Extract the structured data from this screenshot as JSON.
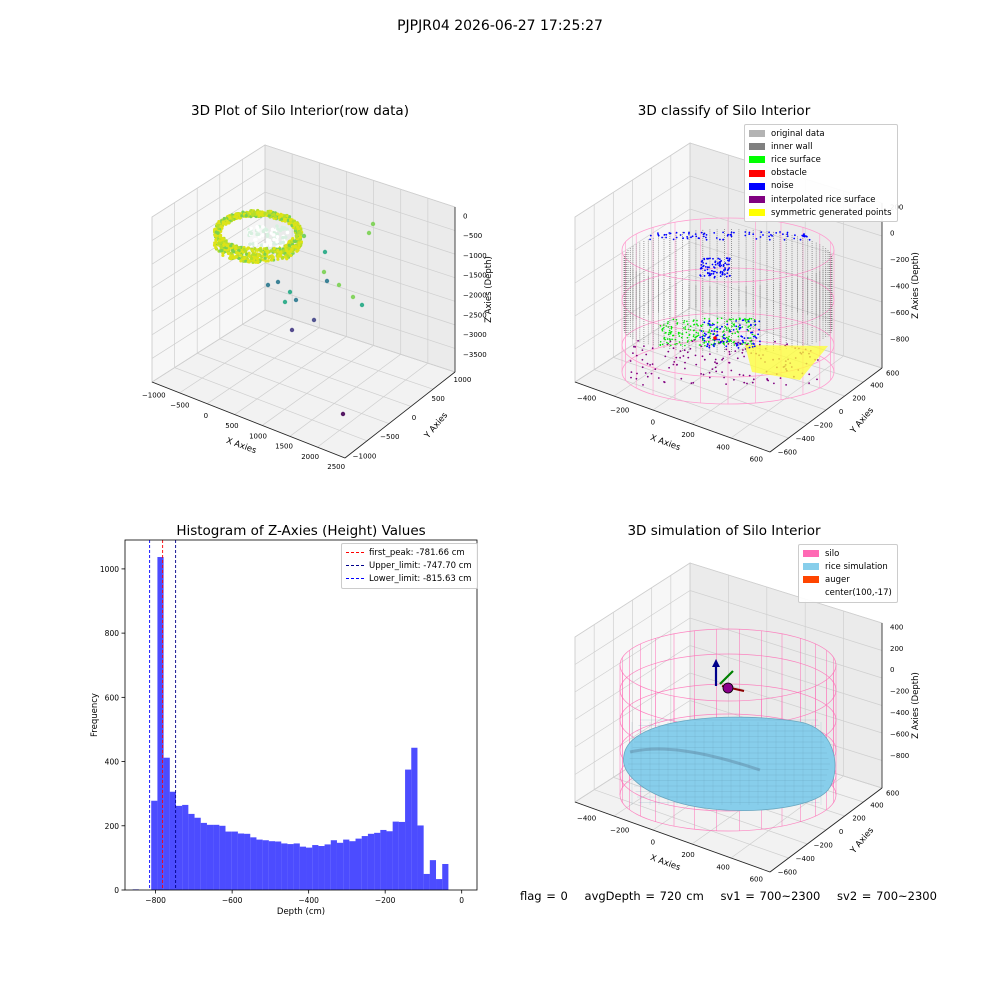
{
  "suptitle": "PJPJR04 2026-06-27 17:25:27",
  "footer": {
    "flag": "flag = 0",
    "avg_depth": "avgDepth = 720 cm",
    "sv1": "sv1 = 700~2300",
    "sv2": "sv2 = 700~2300"
  },
  "colors": {
    "hist_bar": "#0000ff",
    "silo": "#ff69b4",
    "rice_simulation": "#87ceeb",
    "auger": "#ff4500",
    "inner_wall": "#808080",
    "rice_surface": "#00ff00",
    "obstacle": "#ff0000",
    "noise": "#0000ff",
    "interpolated_rice_surface": "#800080",
    "symmetric_generated_points": "#ffff00",
    "original_data": "#b3b3b3"
  },
  "chart_data": [
    {
      "type": "scatter",
      "projection": "3d",
      "title": "3D Plot of Silo Interior(row data)",
      "xlabel": "X Axies",
      "ylabel": "Y Axies",
      "zlabel": "Z Axies (Depth)",
      "x_ticks": [
        "−1000",
        "−500",
        "0",
        "500",
        "1000",
        "1500",
        "2000",
        "2500"
      ],
      "y_ticks": [
        "−1000",
        "−500",
        "0",
        "500",
        "1000"
      ],
      "z_ticks": [
        "0",
        "−500",
        "−1000",
        "−1500",
        "−2000",
        "−2500",
        "−3000",
        "−3500"
      ],
      "xlim": [
        -1100,
        2800
      ],
      "ylim": [
        -1000,
        1300
      ],
      "zlim": [
        -3900,
        200
      ],
      "colormap": "viridis"
    },
    {
      "type": "scatter",
      "projection": "3d",
      "title": "3D classify of Silo Interior",
      "xlabel": "X Axies",
      "ylabel": "Y Axies",
      "zlabel": "Z Axies (Depth)",
      "x_ticks": [
        "−400",
        "−200",
        "0",
        "200",
        "400",
        "600"
      ],
      "y_ticks": [
        "−600",
        "−400",
        "−200",
        "0",
        "200",
        "400",
        "600"
      ],
      "z_ticks": [
        "200",
        "0",
        "−200",
        "−400",
        "−600",
        "−800"
      ],
      "legend": {
        "position": "upper-right",
        "entries": [
          {
            "label": "original data",
            "color": "#b3b3b3"
          },
          {
            "label": "inner wall",
            "color": "#808080"
          },
          {
            "label": "rice surface",
            "color": "#00ff00"
          },
          {
            "label": "obstacle",
            "color": "#ff0000"
          },
          {
            "label": "noise",
            "color": "#0000ff"
          },
          {
            "label": "interpolated rice surface",
            "color": "#800080"
          },
          {
            "label": "symmetric generated points",
            "color": "#ffff00"
          }
        ]
      }
    },
    {
      "type": "bar",
      "title": "Histogram of Z-Axies (Height) Values",
      "xlabel": "Depth (cm)",
      "ylabel": "Frequency",
      "xlim": [
        -880,
        40
      ],
      "ylim": [
        0,
        1090
      ],
      "x_ticks": [
        -800,
        -600,
        -400,
        -200,
        0
      ],
      "x_tick_labels": [
        "−800",
        "−600",
        "−400",
        "−200",
        "0"
      ],
      "y_ticks": [
        0,
        200,
        400,
        600,
        800,
        1000
      ],
      "bin_width": 16.18,
      "bins": [
        {
          "x": -860,
          "v": 2
        },
        {
          "x": -811.5,
          "v": 278
        },
        {
          "x": -795.3,
          "v": 1037
        },
        {
          "x": -779.1,
          "v": 412
        },
        {
          "x": -763.0,
          "v": 306
        },
        {
          "x": -746.8,
          "v": 262
        },
        {
          "x": -730.6,
          "v": 265
        },
        {
          "x": -714.4,
          "v": 237
        },
        {
          "x": -698.2,
          "v": 225
        },
        {
          "x": -682.0,
          "v": 209
        },
        {
          "x": -665.9,
          "v": 203
        },
        {
          "x": -649.7,
          "v": 203
        },
        {
          "x": -633.5,
          "v": 200
        },
        {
          "x": -617.3,
          "v": 182
        },
        {
          "x": -601.1,
          "v": 182
        },
        {
          "x": -584.9,
          "v": 176
        },
        {
          "x": -568.8,
          "v": 175
        },
        {
          "x": -552.6,
          "v": 164
        },
        {
          "x": -536.4,
          "v": 157
        },
        {
          "x": -520.2,
          "v": 155
        },
        {
          "x": -504.0,
          "v": 152
        },
        {
          "x": -487.8,
          "v": 151
        },
        {
          "x": -471.7,
          "v": 145
        },
        {
          "x": -455.5,
          "v": 143
        },
        {
          "x": -439.3,
          "v": 145
        },
        {
          "x": -423.1,
          "v": 135
        },
        {
          "x": -406.9,
          "v": 132
        },
        {
          "x": -390.7,
          "v": 140
        },
        {
          "x": -374.6,
          "v": 137
        },
        {
          "x": -358.4,
          "v": 142
        },
        {
          "x": -342.2,
          "v": 155
        },
        {
          "x": -326.0,
          "v": 147
        },
        {
          "x": -309.8,
          "v": 157
        },
        {
          "x": -293.6,
          "v": 152
        },
        {
          "x": -277.5,
          "v": 160
        },
        {
          "x": -261.3,
          "v": 168
        },
        {
          "x": -245.1,
          "v": 175
        },
        {
          "x": -228.9,
          "v": 178
        },
        {
          "x": -212.7,
          "v": 187
        },
        {
          "x": -196.5,
          "v": 183
        },
        {
          "x": -180.4,
          "v": 213
        },
        {
          "x": -164.2,
          "v": 212
        },
        {
          "x": -148.0,
          "v": 375
        },
        {
          "x": -131.8,
          "v": 443
        },
        {
          "x": -115.6,
          "v": 201
        },
        {
          "x": -99.4,
          "v": 50
        },
        {
          "x": -83.3,
          "v": 93
        },
        {
          "x": -67.1,
          "v": 34
        },
        {
          "x": -50.9,
          "v": 81
        }
      ],
      "reference_lines": [
        {
          "label": "first_peak: -781.66 cm",
          "x": -781.66,
          "color": "#ff0000",
          "style": "dashed"
        },
        {
          "label": "Upper_limit: -747.70 cm",
          "x": -747.7,
          "color": "#00008b",
          "style": "dashed"
        },
        {
          "label": "Lower_limit: -815.63 cm",
          "x": -815.63,
          "color": "#0000ff",
          "style": "dashed"
        }
      ],
      "legend": {
        "position": "upper-right"
      }
    },
    {
      "type": "surface",
      "projection": "3d",
      "title": "3D simulation of Silo Interior",
      "xlabel": "X Axies",
      "ylabel": "Y Axies",
      "zlabel": "Z Axies (Depth)",
      "x_ticks": [
        "−400",
        "−200",
        "0",
        "200",
        "400",
        "600"
      ],
      "y_ticks": [
        "−600",
        "−400",
        "−200",
        "0",
        "200",
        "400",
        "600"
      ],
      "z_ticks": [
        "400",
        "200",
        "0",
        "−200",
        "−400",
        "−600",
        "−800"
      ],
      "legend": {
        "position": "upper-right",
        "entries": [
          {
            "label": "silo",
            "color": "#ff69b4"
          },
          {
            "label": "rice simulation",
            "color": "#87ceeb"
          },
          {
            "label": "auger",
            "color": "#ff4500"
          },
          {
            "label": "center(100,-17)",
            "color": ""
          }
        ]
      }
    }
  ]
}
